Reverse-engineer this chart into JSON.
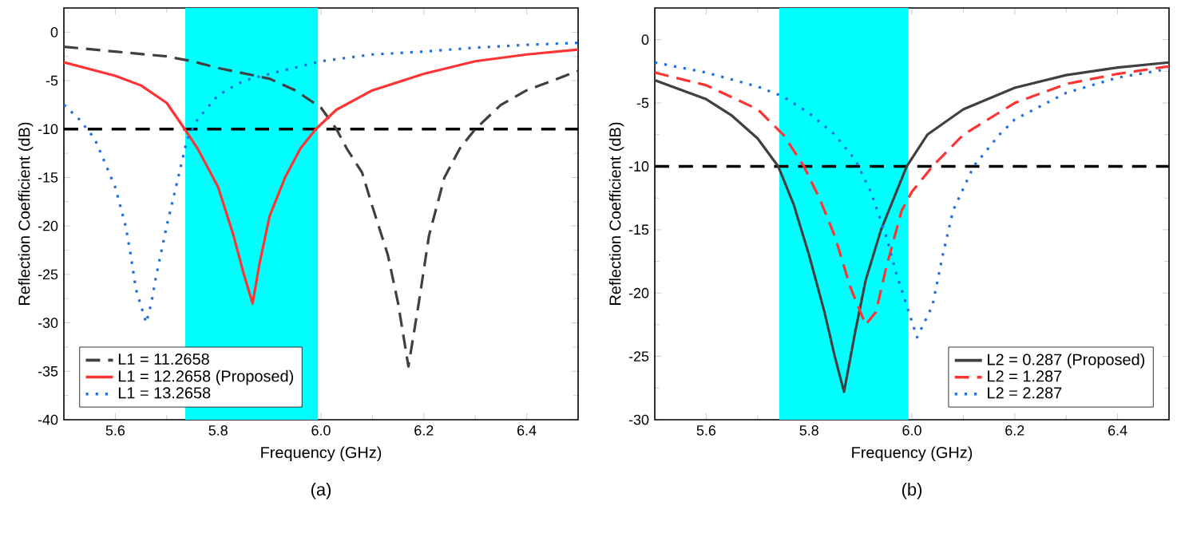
{
  "chart_data": [
    {
      "type": "line",
      "xlabel": "Frequency (GHz)",
      "ylabel": "Reflection Coefficient (dB)",
      "annotations": [
        "(a)"
      ],
      "xlim": [
        5.5,
        6.5
      ],
      "ylim": [
        -40,
        2.5
      ],
      "xticks": [
        {
          "value": 5.6,
          "label": "5.6"
        },
        {
          "value": 5.8,
          "label": "5.8"
        },
        {
          "value": 6.0,
          "label": "6.0"
        },
        {
          "value": 6.2,
          "label": "6.2"
        },
        {
          "value": 6.4,
          "label": "6.4"
        }
      ],
      "yticks": [
        0,
        -5,
        -10,
        -15,
        -20,
        -25,
        -30,
        -35,
        -40
      ],
      "legend": "bottom left",
      "marker": "none",
      "ref_lines": [
        {
          "axis": "y",
          "value": -10,
          "color": "#000000",
          "line_style": "dashed"
        }
      ],
      "bands": [
        {
          "axis": "x",
          "from": 5.736,
          "to": 5.994,
          "color": "#00ffff"
        }
      ],
      "series": [
        {
          "name": "L1 = 11.2658",
          "color": "#404040",
          "line_style": "dashed",
          "x": [
            5.5,
            5.6,
            5.7,
            5.75,
            5.8,
            5.9,
            5.95,
            6.0,
            6.03,
            6.05,
            6.08,
            6.1,
            6.13,
            6.15,
            6.17,
            6.19,
            6.21,
            6.24,
            6.27,
            6.3,
            6.35,
            6.4,
            6.45,
            6.5
          ],
          "values": [
            -1.5,
            -2.0,
            -2.5,
            -3.0,
            -3.7,
            -4.8,
            -6,
            -7.8,
            -10,
            -12,
            -14.5,
            -18,
            -23,
            -28,
            -34.5,
            -28,
            -21,
            -15,
            -12,
            -10,
            -7.5,
            -6,
            -5,
            -4
          ]
        },
        {
          "name": "L1 = 12.2658 (Proposed)",
          "color": "#ff3333",
          "line_style": "solid",
          "x": [
            5.5,
            5.6,
            5.65,
            5.7,
            5.735,
            5.76,
            5.8,
            5.83,
            5.85,
            5.867,
            5.88,
            5.9,
            5.93,
            5.96,
            5.99,
            6.03,
            6.1,
            6.2,
            6.3,
            6.4,
            6.5
          ],
          "values": [
            -3.1,
            -4.5,
            -5.5,
            -7.3,
            -10,
            -12,
            -16,
            -21,
            -25,
            -28,
            -24,
            -19,
            -15,
            -12,
            -10,
            -8,
            -6,
            -4.3,
            -3,
            -2.3,
            -1.8
          ]
        },
        {
          "name": "L1 = 13.2658",
          "color": "#1f6fe0",
          "line_style": "dotted",
          "x": [
            5.5,
            5.53,
            5.56,
            5.58,
            5.6,
            5.62,
            5.63,
            5.64,
            5.66,
            5.67,
            5.68,
            5.7,
            5.72,
            5.74,
            5.76,
            5.8,
            5.85,
            5.9,
            6.0,
            6.1,
            6.2,
            6.3,
            6.4,
            6.5
          ],
          "values": [
            -7.5,
            -9,
            -11,
            -13.5,
            -16,
            -20,
            -23,
            -26.5,
            -30,
            -28,
            -25,
            -20,
            -15.5,
            -11,
            -9,
            -6.5,
            -5,
            -4.3,
            -3,
            -2.3,
            -2,
            -1.6,
            -1.3,
            -1.1
          ]
        }
      ]
    },
    {
      "type": "line",
      "xlabel": "Frequency (GHz)",
      "ylabel": "Reflection Coefficient (dB)",
      "annotations": [
        "(b)"
      ],
      "xlim": [
        5.5,
        6.5
      ],
      "ylim": [
        -30,
        2.5
      ],
      "xticks": [
        {
          "value": 5.6,
          "label": "5.6"
        },
        {
          "value": 5.8,
          "label": "5.8"
        },
        {
          "value": 6.0,
          "label": "6.0"
        },
        {
          "value": 6.2,
          "label": "6.2"
        },
        {
          "value": 6.4,
          "label": "6.4"
        }
      ],
      "yticks": [
        0,
        -5,
        -10,
        -15,
        -20,
        -25,
        -30
      ],
      "legend": "bottom right",
      "marker": "none",
      "ref_lines": [
        {
          "axis": "y",
          "value": -10,
          "color": "#000000",
          "line_style": "dashed"
        }
      ],
      "bands": [
        {
          "axis": "x",
          "from": 5.742,
          "to": 5.993,
          "color": "#00ffff"
        }
      ],
      "series": [
        {
          "name": "L2 = 0.287 (Proposed)",
          "color": "#404040",
          "line_style": "solid",
          "x": [
            5.5,
            5.6,
            5.65,
            5.7,
            5.74,
            5.77,
            5.8,
            5.83,
            5.85,
            5.868,
            5.89,
            5.91,
            5.94,
            5.97,
            5.99,
            6.03,
            6.1,
            6.2,
            6.3,
            6.4,
            6.5
          ],
          "values": [
            -3.2,
            -4.7,
            -6,
            -7.8,
            -10,
            -13,
            -17,
            -21.5,
            -25,
            -27.8,
            -23,
            -19,
            -15,
            -12,
            -10,
            -7.5,
            -5.5,
            -3.8,
            -2.8,
            -2.2,
            -1.8
          ]
        },
        {
          "name": "L2 = 1.287",
          "color": "#ff3333",
          "line_style": "dashed",
          "x": [
            5.5,
            5.6,
            5.7,
            5.75,
            5.79,
            5.82,
            5.85,
            5.88,
            5.9,
            5.91,
            5.93,
            5.95,
            5.98,
            6.0,
            6.04,
            6.1,
            6.2,
            6.3,
            6.4,
            6.5
          ],
          "values": [
            -2.6,
            -3.6,
            -5.5,
            -7.5,
            -10,
            -12.5,
            -15.5,
            -19.5,
            -21.5,
            -22.5,
            -21.5,
            -18,
            -13.5,
            -12,
            -10,
            -7.5,
            -5,
            -3.5,
            -2.7,
            -2.1
          ]
        },
        {
          "name": "L2 = 2.287",
          "color": "#1f6fe0",
          "line_style": "dotted",
          "x": [
            5.5,
            5.6,
            5.7,
            5.75,
            5.8,
            5.85,
            5.89,
            5.92,
            5.95,
            5.97,
            5.99,
            6.01,
            6.04,
            6.06,
            6.08,
            6.12,
            6.17,
            6.2,
            6.3,
            6.4,
            6.5
          ],
          "values": [
            -1.8,
            -2.6,
            -3.7,
            -4.5,
            -5.8,
            -7.5,
            -9.5,
            -12,
            -15.5,
            -18.5,
            -21,
            -23.5,
            -21,
            -17,
            -13.5,
            -10,
            -7.5,
            -6.3,
            -4.2,
            -3,
            -2.3
          ]
        }
      ]
    }
  ]
}
